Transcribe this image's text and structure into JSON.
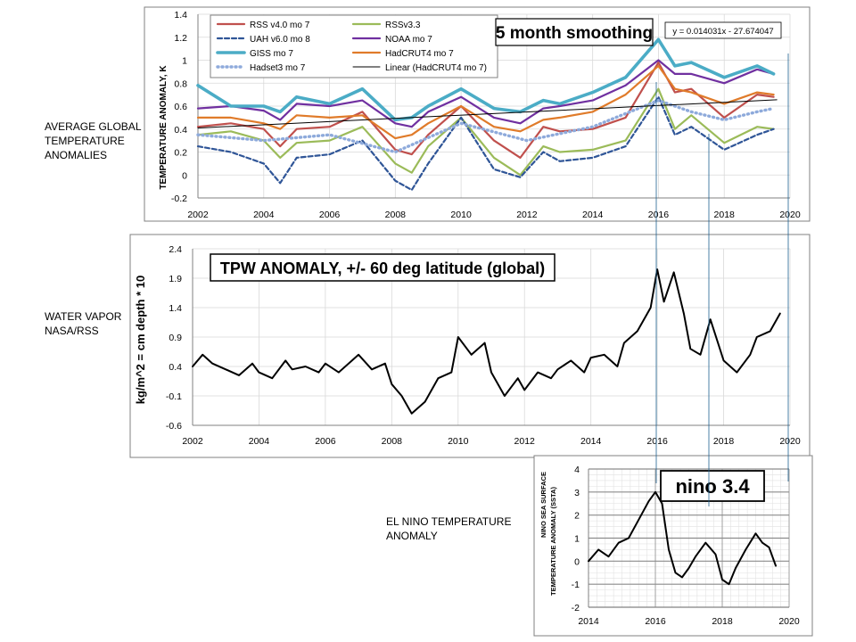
{
  "side_labels": {
    "temperature": [
      "AVERAGE GLOBAL",
      "TEMPERATURE",
      "ANOMALIES"
    ],
    "water_vapor": [
      "WATER VAPOR",
      "NASA/RSS"
    ],
    "el_nino": [
      "EL NINO TEMPERATURE",
      "ANOMALY"
    ]
  },
  "chart_data": [
    {
      "type": "line",
      "ylabel": "TEMPERATURE ANOMALY, K",
      "annotation": "5 month smoothing",
      "equation": "y = 0.014031x - 27.674047",
      "x_ticks": [
        2002,
        2004,
        2006,
        2008,
        2010,
        2012,
        2014,
        2016,
        2018,
        2020
      ],
      "y_ticks": [
        -0.2,
        0,
        0.2,
        0.4,
        0.6,
        0.8,
        1,
        1.2,
        1.4
      ],
      "xlim": [
        2002,
        2020
      ],
      "ylim": [
        -0.2,
        1.4
      ],
      "grid": true,
      "legend_position": "top-left",
      "series": [
        {
          "name": "RSS v4.0 mo 7",
          "color": "#c0504d",
          "x": [
            2002,
            2003,
            2004,
            2004.5,
            2005,
            2006,
            2007,
            2008,
            2008.5,
            2009,
            2010,
            2011,
            2011.8,
            2012.5,
            2013,
            2014,
            2015,
            2016,
            2016.5,
            2017,
            2018,
            2019,
            2019.5
          ],
          "y": [
            0.42,
            0.45,
            0.4,
            0.25,
            0.4,
            0.42,
            0.55,
            0.22,
            0.18,
            0.35,
            0.6,
            0.3,
            0.15,
            0.42,
            0.38,
            0.4,
            0.5,
            0.98,
            0.72,
            0.75,
            0.5,
            0.7,
            0.68
          ]
        },
        {
          "name": "RSSv3.3",
          "color": "#9bbb59",
          "x": [
            2002,
            2003,
            2004,
            2004.5,
            2005,
            2006,
            2007,
            2008,
            2008.5,
            2009,
            2010,
            2011,
            2011.8,
            2012.5,
            2013,
            2014,
            2015,
            2016,
            2016.5,
            2017,
            2018,
            2019,
            2019.5
          ],
          "y": [
            0.35,
            0.38,
            0.3,
            0.15,
            0.28,
            0.3,
            0.42,
            0.1,
            0.02,
            0.25,
            0.5,
            0.15,
            0.0,
            0.25,
            0.2,
            0.22,
            0.3,
            0.75,
            0.4,
            0.52,
            0.28,
            0.42,
            0.4
          ]
        },
        {
          "name": "UAH v6.0 mo 8",
          "color": "#2f5597",
          "x": [
            2002,
            2003,
            2004,
            2004.5,
            2005,
            2006,
            2007,
            2008,
            2008.5,
            2009,
            2010,
            2011,
            2011.8,
            2012.5,
            2013,
            2014,
            2015,
            2016,
            2016.5,
            2017,
            2018,
            2019,
            2019.5
          ],
          "y": [
            0.25,
            0.2,
            0.1,
            -0.07,
            0.15,
            0.18,
            0.3,
            -0.05,
            -0.13,
            0.1,
            0.5,
            0.05,
            -0.02,
            0.2,
            0.12,
            0.15,
            0.25,
            0.68,
            0.35,
            0.42,
            0.22,
            0.35,
            0.4
          ]
        },
        {
          "name": "NOAA mo 7",
          "color": "#7030a0",
          "x": [
            2002,
            2003,
            2004,
            2004.5,
            2005,
            2006,
            2007,
            2008,
            2008.5,
            2009,
            2010,
            2011,
            2011.8,
            2012.5,
            2013,
            2014,
            2015,
            2016,
            2016.5,
            2017,
            2018,
            2019,
            2019.5
          ],
          "y": [
            0.58,
            0.6,
            0.56,
            0.48,
            0.62,
            0.6,
            0.65,
            0.45,
            0.42,
            0.55,
            0.68,
            0.5,
            0.45,
            0.58,
            0.6,
            0.65,
            0.78,
            1.0,
            0.88,
            0.88,
            0.8,
            0.92,
            0.88
          ]
        },
        {
          "name": "GISS mo 7",
          "color": "#4bacc6",
          "x": [
            2002,
            2003,
            2004,
            2004.5,
            2005,
            2006,
            2007,
            2008,
            2008.5,
            2009,
            2010,
            2011,
            2011.8,
            2012.5,
            2013,
            2014,
            2015,
            2016,
            2016.5,
            2017,
            2018,
            2019,
            2019.5
          ],
          "y": [
            0.78,
            0.6,
            0.6,
            0.55,
            0.68,
            0.62,
            0.75,
            0.48,
            0.5,
            0.6,
            0.75,
            0.58,
            0.55,
            0.65,
            0.62,
            0.72,
            0.85,
            1.18,
            0.95,
            0.98,
            0.85,
            0.95,
            0.88
          ]
        },
        {
          "name": "HadCRUT4 mo 7",
          "color": "#e07b2a",
          "x": [
            2002,
            2003,
            2004,
            2004.5,
            2005,
            2006,
            2007,
            2008,
            2008.5,
            2009,
            2010,
            2011,
            2011.8,
            2012.5,
            2013,
            2014,
            2015,
            2016,
            2016.5,
            2017,
            2018,
            2019,
            2019.5
          ],
          "y": [
            0.5,
            0.5,
            0.45,
            0.4,
            0.52,
            0.5,
            0.52,
            0.32,
            0.35,
            0.45,
            0.6,
            0.42,
            0.38,
            0.48,
            0.5,
            0.55,
            0.7,
            0.95,
            0.75,
            0.72,
            0.62,
            0.72,
            0.7
          ]
        },
        {
          "name": "Hadset3 mo 7",
          "color": "#8eaadb",
          "x": [
            2002,
            2004,
            2006,
            2008,
            2010,
            2012,
            2014,
            2016,
            2017,
            2018,
            2019,
            2019.5
          ],
          "y": [
            0.35,
            0.3,
            0.35,
            0.2,
            0.45,
            0.3,
            0.42,
            0.65,
            0.55,
            0.48,
            0.55,
            0.58
          ]
        },
        {
          "name": "Linear (HadCRUT4 mo 7)",
          "color": "#000000",
          "x": [
            2002,
            2019.6
          ],
          "y": [
            0.41,
            0.655
          ]
        }
      ]
    },
    {
      "type": "line",
      "title": "TPW ANOMALY, +/- 60 deg latitude (global)",
      "ylabel": "kg/m^2 = cm depth * 10",
      "x_ticks": [
        2002,
        2004,
        2006,
        2008,
        2010,
        2012,
        2014,
        2016,
        2018,
        2020
      ],
      "y_ticks": [
        -0.6,
        -0.1,
        0.4,
        0.9,
        1.4,
        1.9,
        2.4
      ],
      "xlim": [
        2002,
        2020
      ],
      "ylim": [
        -0.6,
        2.4
      ],
      "grid": true,
      "series": [
        {
          "name": "",
          "color": "#000000",
          "x": [
            2002,
            2002.3,
            2002.6,
            2003,
            2003.4,
            2003.8,
            2004,
            2004.4,
            2004.8,
            2005,
            2005.4,
            2005.8,
            2006,
            2006.4,
            2006.8,
            2007,
            2007.4,
            2007.8,
            2008,
            2008.3,
            2008.6,
            2009,
            2009.4,
            2009.8,
            2010,
            2010.4,
            2010.8,
            2011,
            2011.4,
            2011.8,
            2012,
            2012.4,
            2012.8,
            2013,
            2013.4,
            2013.8,
            2014,
            2014.4,
            2014.8,
            2015,
            2015.4,
            2015.8,
            2016,
            2016.2,
            2016.5,
            2016.8,
            2017,
            2017.3,
            2017.6,
            2018,
            2018.4,
            2018.8,
            2019,
            2019.4,
            2019.7
          ],
          "y": [
            0.4,
            0.6,
            0.45,
            0.35,
            0.25,
            0.45,
            0.3,
            0.2,
            0.5,
            0.35,
            0.4,
            0.3,
            0.45,
            0.3,
            0.5,
            0.6,
            0.35,
            0.45,
            0.1,
            -0.1,
            -0.4,
            -0.2,
            0.2,
            0.3,
            0.9,
            0.6,
            0.8,
            0.3,
            -0.1,
            0.2,
            0.0,
            0.3,
            0.2,
            0.35,
            0.5,
            0.3,
            0.55,
            0.6,
            0.4,
            0.8,
            1.0,
            1.4,
            2.05,
            1.5,
            2.0,
            1.3,
            0.7,
            0.6,
            1.2,
            0.5,
            0.3,
            0.6,
            0.9,
            1.0,
            1.3
          ]
        }
      ]
    },
    {
      "type": "line",
      "title": "nino 3.4",
      "ylabel": "NINO SEA SURFACE TEMPERATURE ANOMALY (SSTA)",
      "x_ticks": [
        2014,
        2016,
        2018,
        2020
      ],
      "y_ticks": [
        -2,
        -1,
        0,
        1,
        2,
        3,
        4
      ],
      "xlim": [
        2014,
        2020
      ],
      "ylim": [
        -2,
        4
      ],
      "grid": true,
      "series": [
        {
          "name": "",
          "color": "#000000",
          "x": [
            2014,
            2014.3,
            2014.6,
            2014.9,
            2015.2,
            2015.5,
            2015.8,
            2016,
            2016.2,
            2016.4,
            2016.6,
            2016.8,
            2017,
            2017.2,
            2017.5,
            2017.8,
            2018,
            2018.2,
            2018.4,
            2018.7,
            2019,
            2019.2,
            2019.4,
            2019.6
          ],
          "y": [
            0.0,
            0.5,
            0.2,
            0.8,
            1.0,
            1.8,
            2.6,
            3.0,
            2.5,
            0.5,
            -0.5,
            -0.7,
            -0.3,
            0.2,
            0.8,
            0.3,
            -0.8,
            -1.0,
            -0.3,
            0.5,
            1.2,
            0.8,
            0.6,
            -0.2
          ]
        }
      ]
    }
  ]
}
